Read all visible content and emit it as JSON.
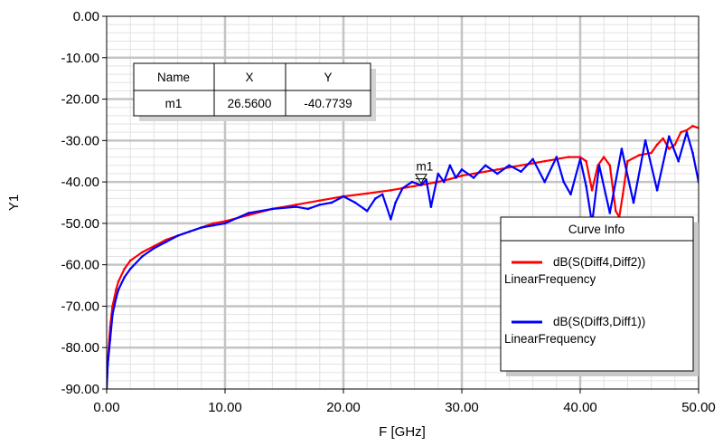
{
  "chart_data": {
    "type": "line",
    "xlabel": "F [GHz]",
    "ylabel": "Y1",
    "xlim": [
      0,
      50
    ],
    "ylim": [
      -90,
      0
    ],
    "xticks": [
      0,
      10,
      20,
      30,
      40,
      50
    ],
    "xtick_labels": [
      "0.00",
      "10.00",
      "20.00",
      "30.00",
      "40.00",
      "50.00"
    ],
    "yticks": [
      0,
      -10,
      -20,
      -30,
      -40,
      -50,
      -60,
      -70,
      -80,
      -90
    ],
    "ytick_labels": [
      "0.00",
      "-10.00",
      "-20.00",
      "-30.00",
      "-40.00",
      "-50.00",
      "-60.00",
      "-70.00",
      "-80.00",
      "-90.00"
    ],
    "grid": true,
    "series": [
      {
        "name": "dB(S(Diff4,Diff2))",
        "sub": "LinearFrequency",
        "color": "#ff0000",
        "x": [
          0,
          0.1,
          0.3,
          0.5,
          0.8,
          1,
          1.5,
          2,
          3,
          4,
          5,
          6,
          7,
          8,
          9,
          10,
          12,
          14,
          16,
          18,
          20,
          22,
          24,
          26,
          27,
          28,
          29,
          30,
          31,
          32,
          33,
          34,
          35,
          36,
          37,
          38,
          39,
          40,
          40.5,
          41,
          41.5,
          42,
          42.5,
          43,
          43.3,
          43.6,
          44,
          45,
          46,
          46.5,
          47,
          47.5,
          48,
          48.5,
          49,
          49.5,
          50
        ],
        "y": [
          -90,
          -83,
          -75,
          -70,
          -66,
          -64,
          -61,
          -59,
          -57,
          -55.5,
          -54,
          -53,
          -52,
          -51,
          -50,
          -49.5,
          -48,
          -46.5,
          -45.5,
          -44.5,
          -43.5,
          -42.8,
          -42,
          -41,
          -40.5,
          -40,
          -39.3,
          -38.5,
          -38,
          -37.5,
          -37,
          -36.5,
          -36,
          -35.5,
          -35,
          -34.5,
          -34,
          -34,
          -35,
          -42,
          -36,
          -34,
          -36,
          -47,
          -48.5,
          -43,
          -35,
          -33.5,
          -33,
          -31,
          -29.5,
          -32,
          -31,
          -28,
          -27.5,
          -26.5,
          -27
        ]
      },
      {
        "name": "dB(S(Diff3,Diff1))",
        "sub": "LinearFrequency",
        "color": "#0000ff",
        "x": [
          0,
          0.1,
          0.3,
          0.5,
          0.8,
          1,
          1.5,
          2,
          3,
          4,
          5,
          6,
          7,
          8,
          9,
          10,
          12,
          14,
          16,
          17,
          18,
          19,
          20,
          21,
          22,
          22.7,
          23.3,
          24,
          24.4,
          25,
          25.8,
          26.56,
          27,
          27.4,
          28,
          28.5,
          29,
          29.5,
          30,
          31,
          32,
          33,
          34,
          35,
          36,
          37,
          38,
          38.6,
          39.2,
          40,
          40.5,
          41,
          41.6,
          42.5,
          43.5,
          44.5,
          45.5,
          46.5,
          47.5,
          48.3,
          49,
          49.5,
          50
        ],
        "y": [
          -90,
          -84,
          -78,
          -72,
          -68,
          -66,
          -63,
          -61,
          -58,
          -56,
          -54.5,
          -53,
          -52,
          -51,
          -50.5,
          -50,
          -47.5,
          -46.5,
          -46,
          -46.5,
          -45.5,
          -45,
          -43.5,
          -45,
          -47,
          -44,
          -43,
          -49,
          -45,
          -41.5,
          -40,
          -40.77,
          -39.5,
          -46,
          -38,
          -40,
          -36,
          -39,
          -37,
          -39,
          -36,
          -38,
          -36,
          -37.5,
          -34.5,
          -40,
          -34,
          -40,
          -43,
          -34.5,
          -41,
          -50,
          -36,
          -47.5,
          -32,
          -45,
          -30,
          -42,
          -29,
          -35,
          -28,
          -33,
          -40
        ]
      }
    ],
    "marker": {
      "label": "m1",
      "x": 26.56,
      "y": -40.7739
    },
    "marker_table": {
      "headers": [
        "Name",
        "X",
        "Y"
      ],
      "row": [
        "m1",
        "26.5600",
        "-40.7739"
      ]
    },
    "legend": {
      "title": "Curve Info",
      "position": "lower-right"
    }
  }
}
